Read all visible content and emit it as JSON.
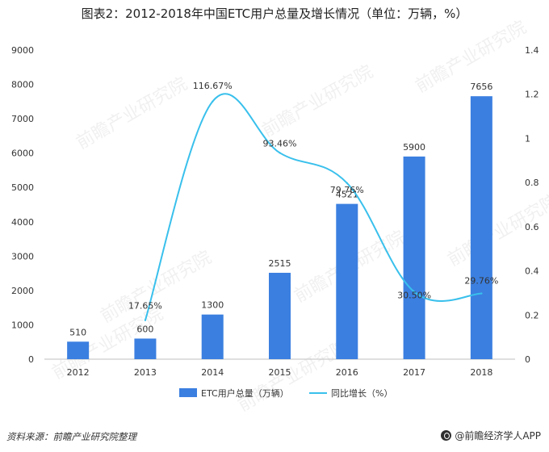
{
  "title": "图表2：2012-2018年中国ETC用户总量及增长情况（单位：万辆，%）",
  "source": "资料来源：前瞻产业研究院整理",
  "brand": "@前瞻经济学人APP",
  "watermark": "前瞻产业研究院",
  "colors": {
    "bar": "#3B7FE0",
    "line": "#39C0EC",
    "axis": "#888888",
    "text": "#333333"
  },
  "chart_data": {
    "type": "bar",
    "categories": [
      "2012",
      "2013",
      "2014",
      "2015",
      "2016",
      "2017",
      "2018"
    ],
    "series": [
      {
        "name": "ETC用户总量（万辆）",
        "type": "bar",
        "axis": "left",
        "values": [
          510,
          600,
          1300,
          2515,
          4521,
          5900,
          7656
        ],
        "labels": [
          "510",
          "600",
          "1300",
          "2515",
          "4521",
          "5900",
          "7656"
        ]
      },
      {
        "name": "同比增长（%）",
        "type": "line",
        "axis": "right",
        "values": [
          null,
          0.1765,
          1.1667,
          0.9346,
          0.7976,
          0.305,
          0.2976
        ],
        "labels": [
          "",
          "17.65%",
          "116.67%",
          "93.46%",
          "79.76%",
          "30.50%",
          "29.76%"
        ]
      }
    ],
    "left_axis": {
      "min": 0,
      "max": 9000,
      "ticks": [
        "0",
        "1000",
        "2000",
        "3000",
        "4000",
        "5000",
        "6000",
        "7000",
        "8000",
        "9000"
      ]
    },
    "right_axis": {
      "min": 0,
      "max": 1.4,
      "ticks": [
        "0",
        "0.2",
        "0.4",
        "0.6",
        "0.8",
        "1",
        "1.2",
        "1.4"
      ]
    },
    "legend_position": "bottom",
    "grid": false
  }
}
